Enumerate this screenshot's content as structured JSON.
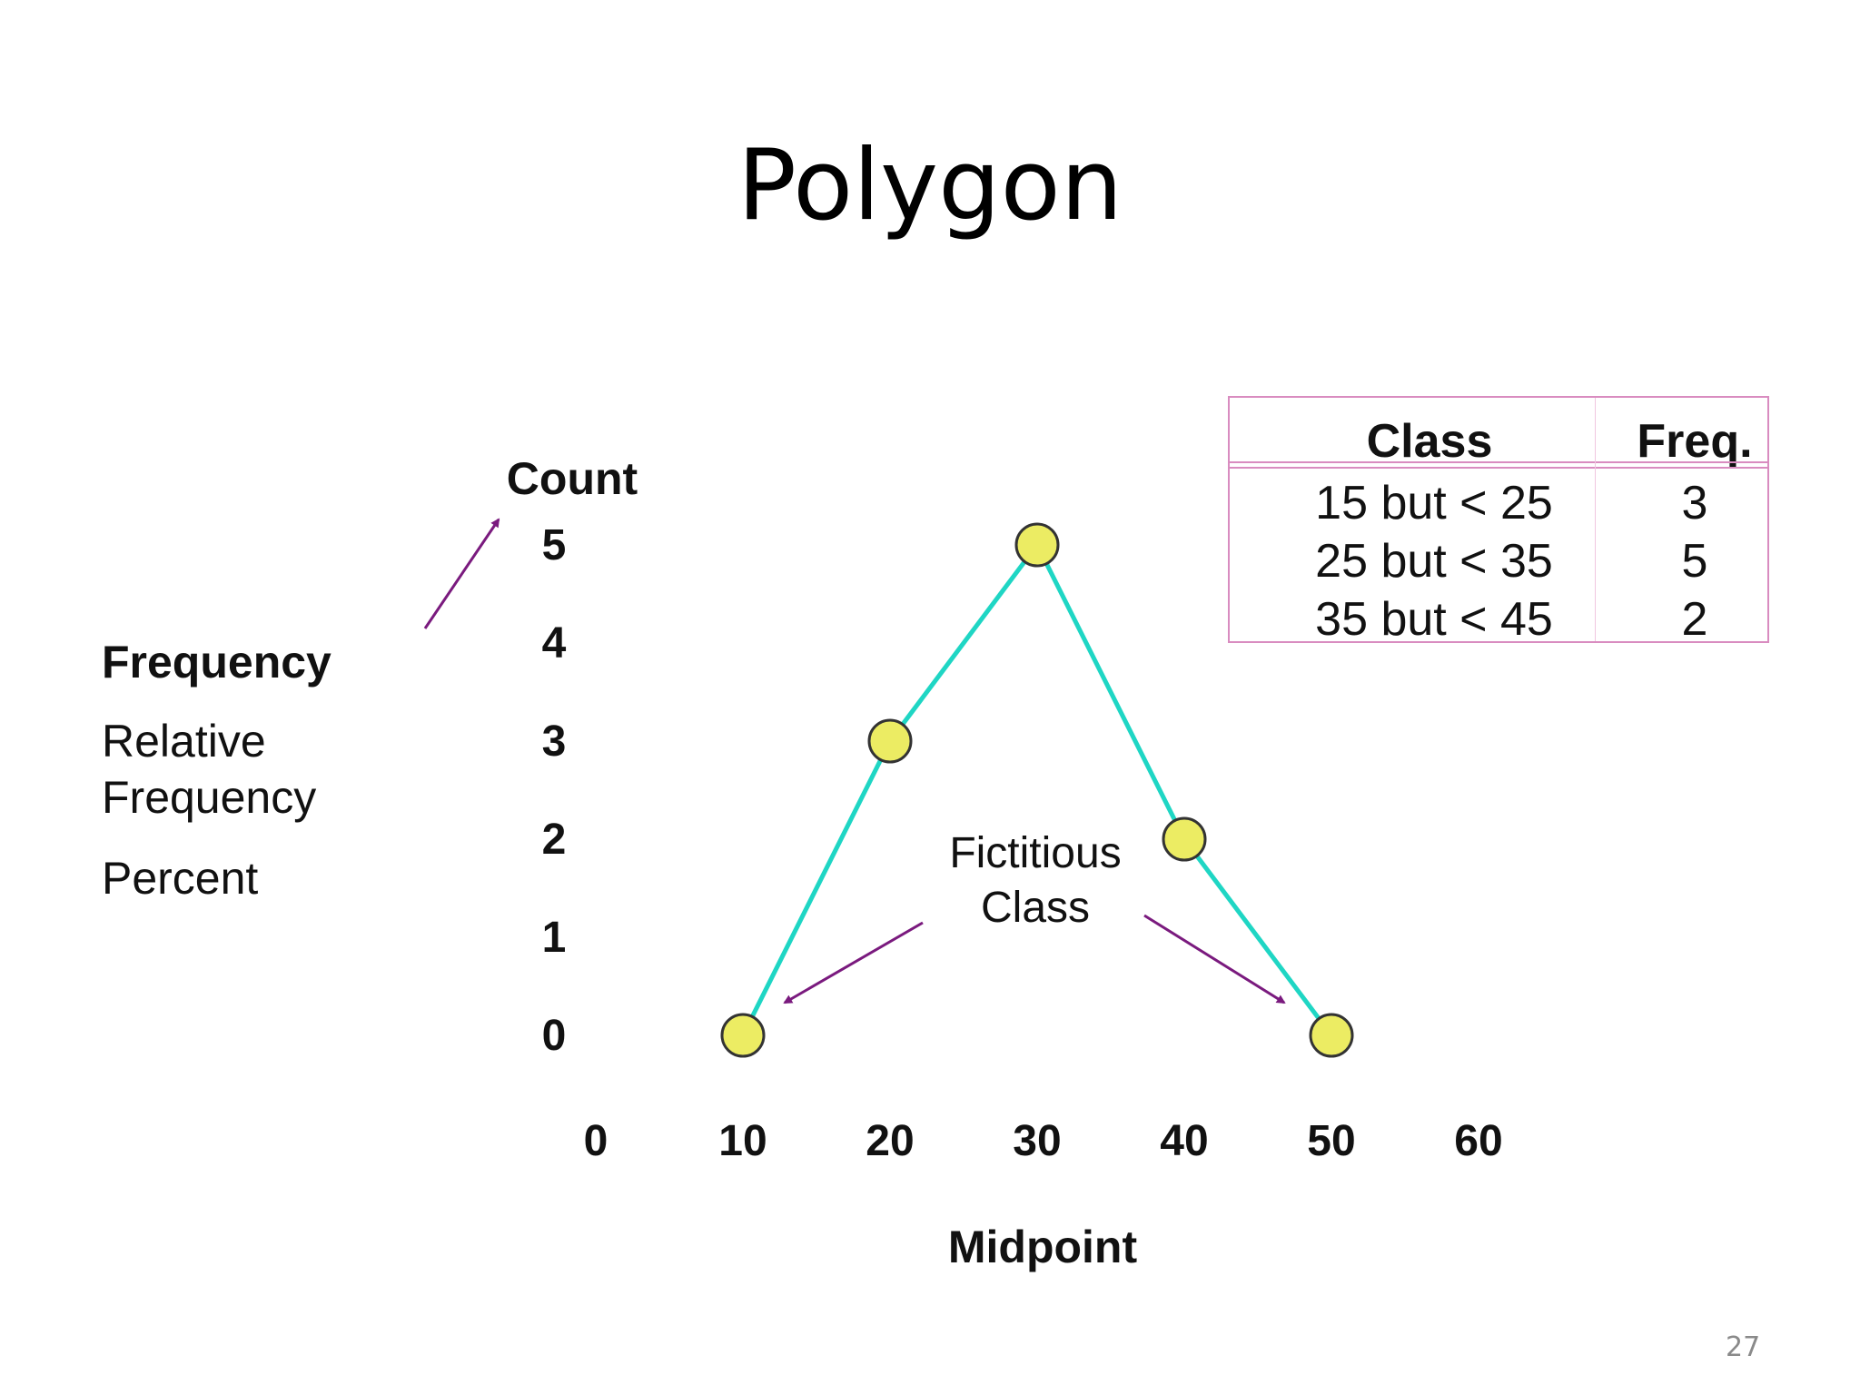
{
  "slide": {
    "title": "Polygon",
    "page_number": "27"
  },
  "side_labels": {
    "frequency": "Frequency",
    "relative_frequency": "Relative Frequency",
    "percent": "Percent"
  },
  "annotation": "Fictitious\nClass",
  "table": {
    "headers": [
      "Class",
      "Freq."
    ],
    "rows": [
      [
        "15 but < 25",
        "3"
      ],
      [
        "25 but < 35",
        "5"
      ],
      [
        "35 but < 45",
        "2"
      ]
    ]
  },
  "colors": {
    "line": "#1fd6c4",
    "marker_fill": "#ecec63",
    "marker_stroke": "#333333",
    "arrow": "#7a1a7e",
    "table_border": "#d98cc0"
  },
  "chart_data": {
    "type": "line",
    "title": "",
    "xlabel": "Midpoint",
    "ylabel": "Count",
    "x_ticks": [
      0,
      10,
      20,
      30,
      40,
      50,
      60
    ],
    "y_ticks": [
      0,
      1,
      2,
      3,
      4,
      5
    ],
    "xlim": [
      0,
      60
    ],
    "ylim": [
      0,
      5
    ],
    "grid": false,
    "series": [
      {
        "x": [
          10,
          20,
          30,
          40,
          50
        ],
        "values": [
          0,
          3,
          5,
          2,
          0
        ]
      }
    ]
  }
}
